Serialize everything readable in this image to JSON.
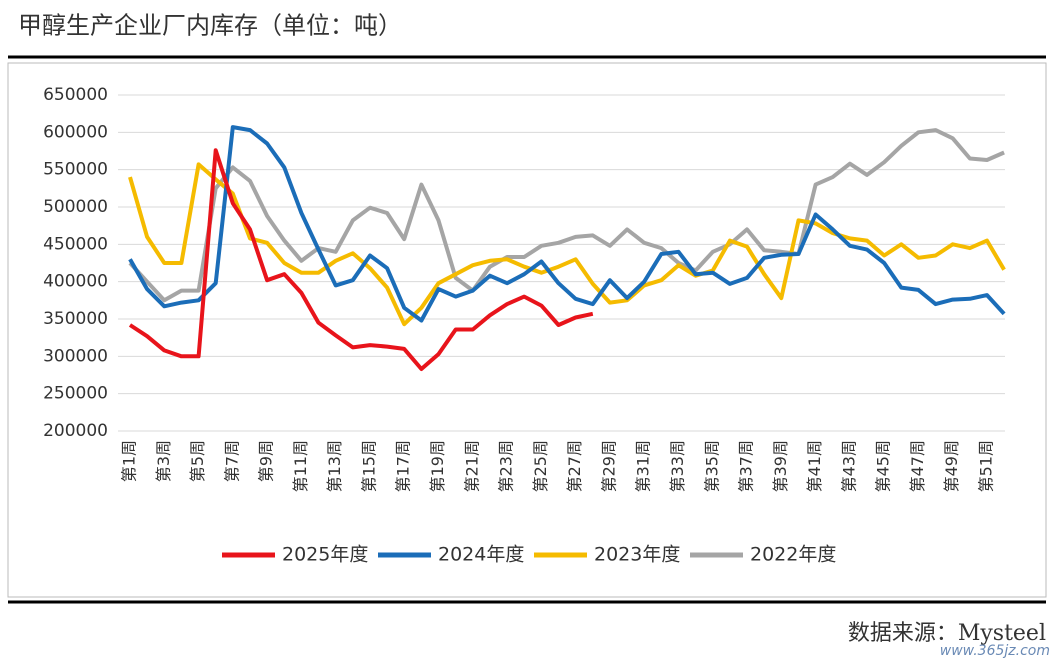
{
  "chart_data": {
    "type": "line",
    "title": "甲醇生产企业厂内库存（单位：吨）",
    "source": "数据来源：Mysteel",
    "watermark": "www.365jz.com",
    "categories": [
      "第1周",
      null,
      "第3周",
      null,
      "第5周",
      null,
      "第7周",
      null,
      "第9周",
      null,
      "第11周",
      null,
      "第13周",
      null,
      "第15周",
      null,
      "第17周",
      null,
      "第19周",
      null,
      "第21周",
      null,
      "第23周",
      null,
      "第25周",
      null,
      "第27周",
      null,
      "第29周",
      null,
      "第31周",
      null,
      "第33周",
      null,
      "第35周",
      null,
      "第37周",
      null,
      "第39周",
      null,
      "第41周",
      null,
      "第43周",
      null,
      "第45周",
      null,
      "第47周",
      null,
      "第49周",
      null,
      "第51周",
      null
    ],
    "series": [
      {
        "name": "2025年度",
        "color": "#e8141b",
        "values": [
          342000,
          327000,
          308000,
          300000,
          300000,
          576000,
          505000,
          470000,
          402000,
          410000,
          385000,
          345000,
          328000,
          312000,
          315000,
          313000,
          310000,
          283000,
          303000,
          336000,
          336000,
          355000,
          370000,
          380000,
          368000,
          342000,
          352000,
          357000,
          null,
          null,
          null,
          null,
          null,
          null,
          null,
          null,
          null,
          null,
          null,
          null,
          null,
          null,
          null,
          null,
          null,
          null,
          null,
          null,
          null,
          null,
          null,
          null
        ]
      },
      {
        "name": "2024年度",
        "color": "#1b6db8",
        "values": [
          430000,
          390000,
          367000,
          372000,
          375000,
          398000,
          607000,
          603000,
          585000,
          553000,
          492000,
          443000,
          395000,
          402000,
          435000,
          418000,
          365000,
          348000,
          390000,
          380000,
          388000,
          408000,
          398000,
          410000,
          427000,
          398000,
          377000,
          370000,
          402000,
          378000,
          400000,
          437000,
          440000,
          410000,
          412000,
          397000,
          405000,
          432000,
          436000,
          437000,
          490000,
          470000,
          448000,
          443000,
          425000,
          392000,
          389000,
          370000,
          376000,
          377000,
          382000,
          357000
        ]
      },
      {
        "name": "2023年度",
        "color": "#f5bb00",
        "values": [
          540000,
          460000,
          425000,
          425000,
          557000,
          537000,
          518000,
          458000,
          452000,
          425000,
          412000,
          412000,
          428000,
          438000,
          418000,
          392000,
          343000,
          365000,
          398000,
          410000,
          422000,
          428000,
          430000,
          420000,
          412000,
          420000,
          430000,
          397000,
          372000,
          375000,
          395000,
          402000,
          422000,
          408000,
          415000,
          455000,
          447000,
          410000,
          378000,
          482000,
          478000,
          465000,
          458000,
          455000,
          435000,
          450000,
          432000,
          435000,
          450000,
          445000,
          455000,
          416000
        ]
      },
      {
        "name": "2022年度",
        "color": "#a5a5a5",
        "values": [
          425000,
          400000,
          375000,
          388000,
          388000,
          525000,
          553000,
          535000,
          488000,
          455000,
          428000,
          445000,
          440000,
          482000,
          499000,
          492000,
          457000,
          530000,
          482000,
          405000,
          388000,
          420000,
          433000,
          433000,
          448000,
          452000,
          460000,
          462000,
          448000,
          470000,
          452000,
          445000,
          425000,
          415000,
          440000,
          450000,
          470000,
          442000,
          440000,
          437000,
          530000,
          540000,
          558000,
          543000,
          560000,
          582000,
          600000,
          603000,
          592000,
          565000,
          563000,
          573000
        ]
      }
    ],
    "ylim": [
      200000,
      650000
    ],
    "yticks": [
      200000,
      250000,
      300000,
      350000,
      400000,
      450000,
      500000,
      550000,
      600000,
      650000
    ],
    "grid": true,
    "legend": "bottom"
  }
}
